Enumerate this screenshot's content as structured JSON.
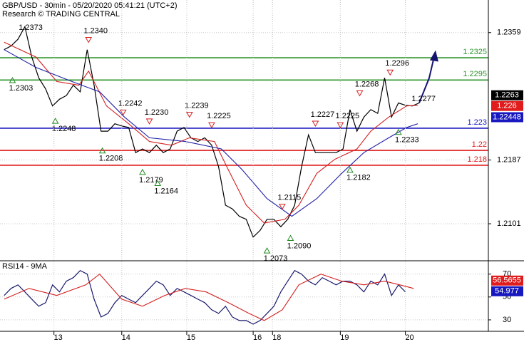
{
  "chart_data": [
    {
      "type": "line",
      "title": "GBP/USD - 30min - 05/20/2020 05:41:21 (UTC+2)",
      "subtitle": "Research © TRADING CENTRAL",
      "xlim": [
        0,
        353
      ],
      "ylim": [
        1.2052,
        1.2403
      ],
      "yticks": [
        1.2359,
        1.2187,
        1.2101
      ],
      "grid": true,
      "x": [
        3,
        8,
        13,
        18,
        23,
        28,
        33,
        38,
        43,
        48,
        53,
        58,
        63,
        68,
        73,
        78,
        83,
        88,
        93,
        98,
        103,
        108,
        113,
        118,
        123,
        128,
        133,
        138,
        143,
        148,
        153,
        158,
        163,
        168,
        173,
        178,
        183,
        188,
        193,
        198,
        203,
        208,
        213,
        218,
        223,
        228,
        233,
        238,
        243,
        248,
        253,
        258,
        263,
        268,
        273,
        278,
        283,
        288,
        293,
        298,
        303
      ],
      "series": [
        {
          "color": "#000000",
          "values": [
            1.2336,
            1.2341,
            1.235,
            1.2367,
            1.2326,
            1.2298,
            1.2283,
            1.226,
            1.2269,
            1.2274,
            1.2288,
            1.2279,
            1.2336,
            1.2288,
            1.2226,
            1.2226,
            1.2236,
            1.2233,
            1.2231,
            1.2197,
            1.2202,
            1.2197,
            1.2207,
            1.2197,
            1.2202,
            1.2226,
            1.2231,
            1.2217,
            1.2212,
            1.2217,
            1.2207,
            1.2178,
            1.2126,
            1.2121,
            1.2111,
            1.2107,
            1.2083,
            1.2092,
            1.2107,
            1.2107,
            1.2097,
            1.2107,
            1.2126,
            1.2178,
            1.2221,
            1.2197,
            1.2197,
            1.2197,
            1.2197,
            1.2202,
            1.2255,
            1.2226,
            1.2245,
            1.2255,
            1.225,
            1.2298,
            1.2245,
            1.2264,
            1.2261,
            1.226,
            1.2264
          ]
        },
        {
          "color": "#d42020",
          "x": [
            3,
            26,
            41,
            57,
            64,
            77,
            93,
            108,
            124,
            137,
            155,
            165,
            178,
            191,
            206,
            216,
            229,
            242,
            258,
            268,
            281,
            294,
            302
          ],
          "values": [
            1.2346,
            1.2326,
            1.2293,
            1.2288,
            1.2307,
            1.226,
            1.2236,
            1.2212,
            1.2207,
            1.2217,
            1.2212,
            1.2174,
            1.2126,
            1.2102,
            1.2107,
            1.2126,
            1.2169,
            1.2188,
            1.2202,
            1.2226,
            1.2245,
            1.226,
            1.2261
          ]
        },
        {
          "color": "#2020a8",
          "x": [
            3,
            26,
            52,
            72,
            90,
            108,
            134,
            160,
            175,
            193,
            211,
            229,
            247,
            263,
            281,
            294,
            302
          ],
          "values": [
            1.2336,
            1.2312,
            1.2293,
            1.2279,
            1.2245,
            1.2217,
            1.2212,
            1.2202,
            1.2174,
            1.2135,
            1.2111,
            1.2135,
            1.2169,
            1.2197,
            1.2217,
            1.2231,
            1.2236
          ]
        }
      ],
      "levels": [
        {
          "value": 1.2325,
          "color": "#2e962e"
        },
        {
          "value": 1.2295,
          "color": "#2e962e"
        },
        {
          "value": 1.223,
          "color": "#1818c0"
        },
        {
          "value": 1.22,
          "color": "#e01c1c"
        },
        {
          "value": 1.218,
          "color": "#e01c1c"
        }
      ],
      "price_tags": [
        {
          "value": 1.2263,
          "color": "#000000"
        },
        {
          "value": 1.226,
          "color": "#e01c1c"
        },
        {
          "value": 1.22448,
          "color": "#1818c0"
        }
      ],
      "annotations": [
        {
          "x": 16,
          "y": 1.2373,
          "label": "1.2373",
          "marker": "none"
        },
        {
          "x": 64,
          "y": 1.234,
          "label": "1.2340",
          "marker": "down"
        },
        {
          "x": 9,
          "y": 1.2303,
          "label": "1.2303",
          "marker": "up"
        },
        {
          "x": 40,
          "y": 1.2248,
          "label": "1.2248",
          "marker": "up"
        },
        {
          "x": 89,
          "y": 1.2242,
          "label": "1.2242",
          "marker": "down"
        },
        {
          "x": 108,
          "y": 1.223,
          "label": "1.2230",
          "marker": "down"
        },
        {
          "x": 137,
          "y": 1.2239,
          "label": "1.2239",
          "marker": "down"
        },
        {
          "x": 153,
          "y": 1.2225,
          "label": "1.2225",
          "marker": "down"
        },
        {
          "x": 74,
          "y": 1.2208,
          "label": "1.2208",
          "marker": "up"
        },
        {
          "x": 103,
          "y": 1.2179,
          "label": "1.2179",
          "marker": "up"
        },
        {
          "x": 114,
          "y": 1.2164,
          "label": "1.2164",
          "marker": "up"
        },
        {
          "x": 204,
          "y": 1.2115,
          "label": "1.2115",
          "marker": "down"
        },
        {
          "x": 210,
          "y": 1.209,
          "label": "1.2090",
          "marker": "up"
        },
        {
          "x": 193,
          "y": 1.2073,
          "label": "1.2073",
          "marker": "up"
        },
        {
          "x": 228,
          "y": 1.2227,
          "label": "1.2227",
          "marker": "down"
        },
        {
          "x": 246,
          "y": 1.2225,
          "label": "1.2225",
          "marker": "down"
        },
        {
          "x": 260,
          "y": 1.2268,
          "label": "1.2268",
          "marker": "down"
        },
        {
          "x": 282,
          "y": 1.2296,
          "label": "1.2296",
          "marker": "down"
        },
        {
          "x": 300,
          "y": 1.2277,
          "label": "1.2277",
          "marker": "none"
        },
        {
          "x": 288,
          "y": 1.2233,
          "label": "1.2233",
          "marker": "up"
        },
        {
          "x": 253,
          "y": 1.2182,
          "label": "1.2182",
          "marker": "up"
        }
      ]
    },
    {
      "type": "line",
      "title": "RSI14 - 9MA",
      "xlim": [
        0,
        353
      ],
      "ylim": [
        20,
        81
      ],
      "xticks": [
        {
          "value": 39,
          "label": "13"
        },
        {
          "value": 88,
          "label": "14"
        },
        {
          "value": 135,
          "label": "15"
        },
        {
          "value": 183,
          "label": "16"
        },
        {
          "value": 197,
          "label": "18"
        },
        {
          "value": 246,
          "label": "19"
        },
        {
          "value": 293,
          "label": "20"
        }
      ],
      "yticks": [
        70,
        50,
        30
      ],
      "grid": true,
      "x": [
        3,
        8,
        13,
        18,
        23,
        28,
        33,
        38,
        43,
        48,
        53,
        58,
        63,
        68,
        73,
        78,
        83,
        88,
        93,
        98,
        103,
        108,
        113,
        118,
        123,
        128,
        133,
        138,
        143,
        148,
        153,
        158,
        163,
        168,
        173,
        178,
        183,
        188,
        193,
        198,
        203,
        208,
        213,
        218,
        223,
        228,
        233,
        238,
        243,
        248,
        253,
        258,
        263,
        268,
        273,
        278,
        283,
        288,
        293
      ],
      "series": [
        {
          "color": "#1a1a6e",
          "values": [
            51.3,
            57.5,
            60.6,
            54.4,
            48.1,
            41.9,
            45,
            60.6,
            54.4,
            63.8,
            66.9,
            73.1,
            70,
            48.1,
            32.5,
            35.6,
            45,
            51.3,
            48.1,
            45,
            51.3,
            57.5,
            63.8,
            60.6,
            51.3,
            57.5,
            54.4,
            51.3,
            48.1,
            45,
            38.8,
            35.6,
            41.9,
            32.5,
            29.4,
            29.4,
            26.3,
            29.4,
            35.6,
            41.9,
            54.4,
            63.8,
            73.1,
            70,
            63.8,
            60.6,
            66.9,
            63.8,
            60.6,
            63.8,
            63.8,
            60.6,
            54.4,
            63.8,
            60.6,
            70,
            51.3,
            60.6,
            54.4
          ]
        },
        {
          "color": "#d42020",
          "x": [
            3,
            21,
            41,
            62,
            72,
            88,
            103,
            119,
            134,
            149,
            165,
            180,
            191,
            204,
            216,
            232,
            247,
            263,
            278,
            289,
            299
          ],
          "values": [
            48.1,
            57.5,
            51.3,
            60.6,
            70,
            48.1,
            41.9,
            51.3,
            57.5,
            54.4,
            45,
            35.6,
            29.4,
            38.8,
            60.6,
            70,
            63.8,
            60.6,
            63.8,
            60.6,
            57.5
          ]
        }
      ],
      "price_tags": [
        {
          "value": 56.5655,
          "color": "#e01c1c"
        },
        {
          "value": 54.977,
          "color": "#1818c0"
        }
      ]
    }
  ]
}
